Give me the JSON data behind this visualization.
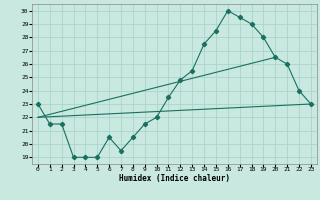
{
  "xlabel": "Humidex (Indice chaleur)",
  "xlim": [
    -0.5,
    23.5
  ],
  "ylim": [
    18.5,
    30.5
  ],
  "xticks": [
    0,
    1,
    2,
    3,
    4,
    5,
    6,
    7,
    8,
    9,
    10,
    11,
    12,
    13,
    14,
    15,
    16,
    17,
    18,
    19,
    20,
    21,
    22,
    23
  ],
  "yticks": [
    19,
    20,
    21,
    22,
    23,
    24,
    25,
    26,
    27,
    28,
    29,
    30
  ],
  "bg_color": "#c8e8e0",
  "line_color": "#1a7060",
  "grid_color": "#aad4cc",
  "line1_x": [
    0,
    1,
    2,
    3,
    4,
    5,
    6,
    7,
    8,
    9,
    10,
    11,
    12,
    13,
    14,
    15,
    16,
    17,
    18,
    19,
    20,
    21,
    22,
    23
  ],
  "line1_y": [
    23.0,
    21.5,
    21.5,
    19.0,
    19.0,
    19.0,
    20.5,
    19.5,
    20.5,
    21.5,
    22.0,
    23.5,
    24.8,
    25.5,
    27.5,
    28.5,
    30.0,
    29.5,
    29.0,
    28.0,
    26.5,
    26.0,
    24.0,
    23.0
  ],
  "line2_x": [
    0,
    23
  ],
  "line2_y": [
    22.0,
    23.0
  ],
  "line3_x": [
    0,
    20
  ],
  "line3_y": [
    22.0,
    26.5
  ]
}
